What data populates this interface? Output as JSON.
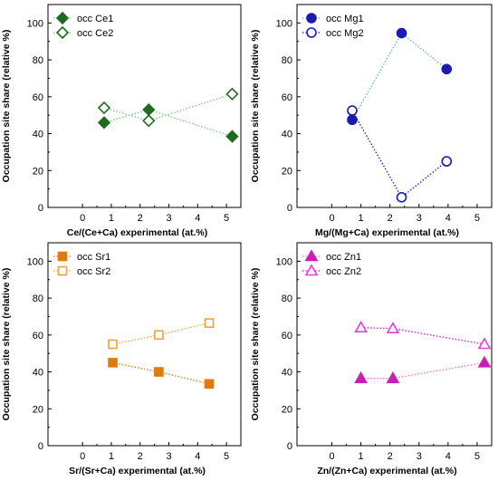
{
  "chart_data": [
    {
      "type": "scatter",
      "xlabel": "Ce/(Ce+Ca) experimental (at.%)",
      "ylabel": "Occupation site share (relative %)",
      "xlim": [
        -1.2,
        5.5
      ],
      "ylim": [
        0,
        110
      ],
      "xticks": [
        0,
        1,
        2,
        3,
        4,
        5
      ],
      "yticks": [
        0,
        20,
        40,
        60,
        80,
        100
      ],
      "legend_position": "top-left",
      "series": [
        {
          "name": "occ Ce1",
          "marker": "diamond",
          "filled": true,
          "color": "#1f6b1f",
          "line_color": "#7cc67c",
          "x": [
            0.75,
            2.3,
            5.2
          ],
          "y": [
            46,
            53,
            38.5
          ]
        },
        {
          "name": "occ Ce2",
          "marker": "diamond",
          "filled": false,
          "color": "#1f6b1f",
          "line_color": "#7cc67c",
          "x": [
            0.75,
            2.3,
            5.2
          ],
          "y": [
            54,
            47,
            61.5
          ]
        }
      ]
    },
    {
      "type": "scatter",
      "xlabel": "Mg/(Mg+Ca) experimental (at.%)",
      "ylabel": "Occupation site share (relative %)",
      "xlim": [
        -1.2,
        5.5
      ],
      "ylim": [
        0,
        110
      ],
      "xticks": [
        0,
        1,
        2,
        3,
        4,
        5
      ],
      "yticks": [
        0,
        20,
        40,
        60,
        80,
        100
      ],
      "legend_position": "top-left",
      "series": [
        {
          "name": "occ Mg1",
          "marker": "circle",
          "filled": true,
          "color": "#1b1bb0",
          "line_color": "#5fb3b3",
          "x": [
            0.7,
            2.4,
            3.95
          ],
          "y": [
            47.5,
            94.5,
            75
          ]
        },
        {
          "name": "occ Mg2",
          "marker": "circle",
          "filled": false,
          "color": "#1b1bb0",
          "line_color": "#1b1bb0",
          "x": [
            0.7,
            2.4,
            3.95
          ],
          "y": [
            52.5,
            5.5,
            25
          ]
        }
      ]
    },
    {
      "type": "scatter",
      "xlabel": "Sr/(Sr+Ca) experimental (at.%)",
      "ylabel": "Occupation site share (relative %)",
      "xlim": [
        -1.2,
        5.5
      ],
      "ylim": [
        0,
        110
      ],
      "xticks": [
        0,
        1,
        2,
        3,
        4,
        5
      ],
      "yticks": [
        0,
        20,
        40,
        60,
        80,
        100
      ],
      "legend_position": "top-left",
      "series": [
        {
          "name": "occ Sr1",
          "marker": "square",
          "filled": true,
          "color": "#e07a10",
          "line_color": "#e07a10",
          "x": [
            1.05,
            2.65,
            4.4
          ],
          "y": [
            45,
            40,
            33.5
          ]
        },
        {
          "name": "occ Sr2",
          "marker": "square",
          "filled": false,
          "color": "#f0a040",
          "line_color": "#f0a040",
          "x": [
            1.05,
            2.65,
            4.4
          ],
          "y": [
            55,
            60,
            66.5
          ]
        }
      ]
    },
    {
      "type": "scatter",
      "xlabel": "Zn/(Zn+Ca) experimental (at.%)",
      "ylabel": "Occupation site share (relative %)",
      "xlim": [
        -1.2,
        5.5
      ],
      "ylim": [
        0,
        110
      ],
      "xticks": [
        0,
        1,
        2,
        3,
        4,
        5
      ],
      "yticks": [
        0,
        20,
        40,
        60,
        80,
        100
      ],
      "legend_position": "top-left",
      "series": [
        {
          "name": "occ Zn1",
          "marker": "triangle",
          "filled": true,
          "color": "#c81fb4",
          "line_color": "#e070e0",
          "x": [
            1.0,
            2.1,
            5.25
          ],
          "y": [
            36.5,
            36.5,
            45
          ]
        },
        {
          "name": "occ Zn2",
          "marker": "triangle",
          "filled": false,
          "color": "#e040e0",
          "line_color": "#c81fb4",
          "x": [
            1.0,
            2.1,
            5.25
          ],
          "y": [
            64,
            63.5,
            55
          ]
        }
      ]
    }
  ]
}
